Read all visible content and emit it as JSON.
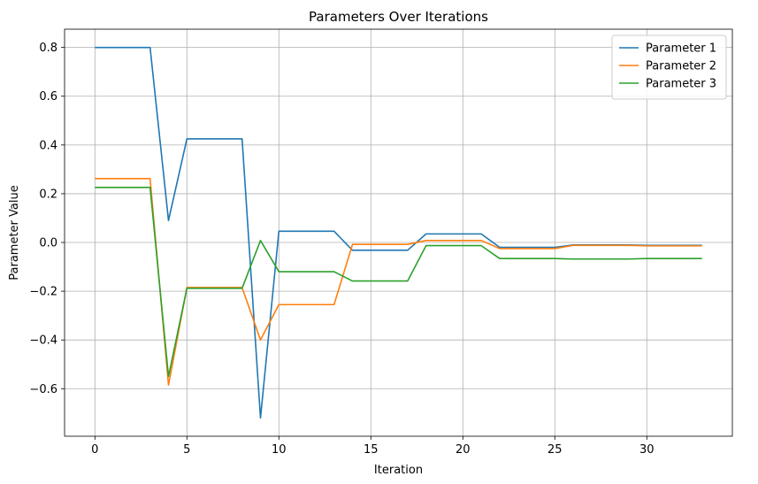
{
  "chart_data": {
    "type": "line",
    "title": "Parameters Over Iterations",
    "xlabel": "Iteration",
    "ylabel": "Parameter Value",
    "xlim": [
      -1.65,
      34.65
    ],
    "ylim": [
      -0.795,
      0.875
    ],
    "xticks": [
      0,
      5,
      10,
      15,
      20,
      25,
      30
    ],
    "yticks": [
      -0.6,
      -0.4,
      -0.2,
      0.0,
      0.2,
      0.4,
      0.6,
      0.8
    ],
    "ytick_labels": [
      "−0.6",
      "−0.4",
      "−0.2",
      "0.0",
      "0.2",
      "0.4",
      "0.6",
      "0.8"
    ],
    "grid": true,
    "legend_position": "top-right",
    "x": [
      0,
      1,
      2,
      3,
      4,
      5,
      6,
      7,
      8,
      9,
      10,
      11,
      12,
      13,
      14,
      15,
      16,
      17,
      18,
      19,
      20,
      21,
      22,
      23,
      24,
      25,
      26,
      27,
      28,
      29,
      30,
      31,
      32,
      33
    ],
    "series": [
      {
        "name": "Parameter 1",
        "color": "#1f77b4",
        "values": [
          0.8,
          0.8,
          0.8,
          0.8,
          0.09,
          0.425,
          0.425,
          0.425,
          0.425,
          -0.72,
          0.046,
          0.046,
          0.046,
          0.046,
          -0.032,
          -0.032,
          -0.032,
          -0.032,
          0.035,
          0.035,
          0.035,
          0.035,
          -0.02,
          -0.02,
          -0.02,
          -0.02,
          -0.01,
          -0.01,
          -0.01,
          -0.01,
          -0.012,
          -0.012,
          -0.012,
          -0.012
        ]
      },
      {
        "name": "Parameter 2",
        "color": "#ff7f0e",
        "values": [
          0.262,
          0.262,
          0.262,
          0.262,
          -0.585,
          -0.185,
          -0.185,
          -0.185,
          -0.185,
          -0.4,
          -0.255,
          -0.255,
          -0.255,
          -0.255,
          -0.008,
          -0.008,
          -0.008,
          -0.008,
          0.008,
          0.008,
          0.008,
          0.008,
          -0.025,
          -0.025,
          -0.025,
          -0.025,
          -0.012,
          -0.012,
          -0.012,
          -0.012,
          -0.014,
          -0.014,
          -0.014,
          -0.014
        ]
      },
      {
        "name": "Parameter 3",
        "color": "#2ca02c",
        "values": [
          0.226,
          0.226,
          0.226,
          0.226,
          -0.55,
          -0.188,
          -0.188,
          -0.188,
          -0.188,
          0.008,
          -0.12,
          -0.12,
          -0.12,
          -0.12,
          -0.158,
          -0.158,
          -0.158,
          -0.158,
          -0.013,
          -0.013,
          -0.013,
          -0.013,
          -0.066,
          -0.066,
          -0.066,
          -0.066,
          -0.068,
          -0.068,
          -0.068,
          -0.068,
          -0.066,
          -0.066,
          -0.066,
          -0.066
        ]
      }
    ]
  }
}
